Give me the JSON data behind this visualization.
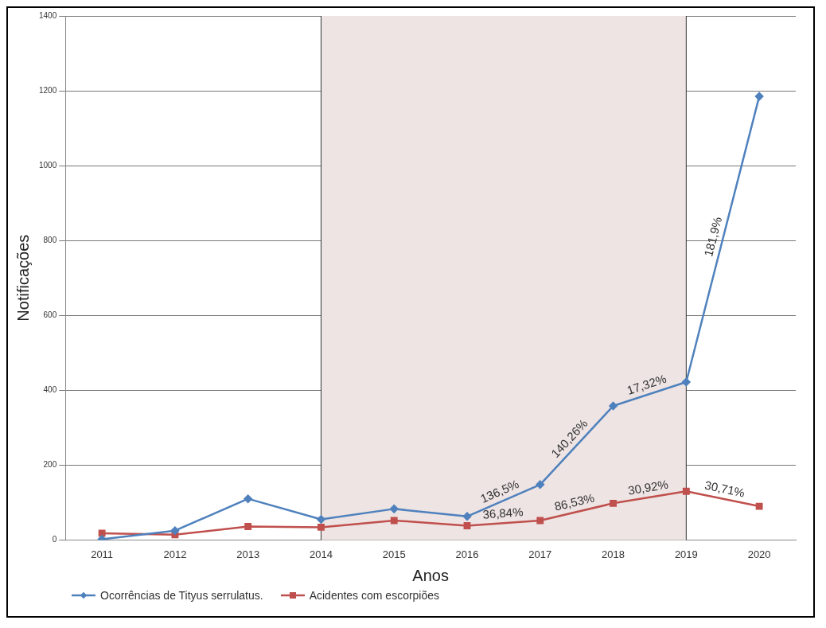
{
  "chart_data": {
    "type": "line",
    "xlabel": "Anos",
    "ylabel": "Notificações",
    "categories": [
      "2011",
      "2012",
      "2013",
      "2014",
      "2015",
      "2016",
      "2017",
      "2018",
      "2019",
      "2020"
    ],
    "series": [
      {
        "name": "Ocorrências de Tityus serrulatus.",
        "color": "#4f81bd",
        "marker": "diamond",
        "values": [
          2,
          25,
          110,
          55,
          83,
          63,
          148,
          358,
          422,
          1185
        ]
      },
      {
        "name": "Acidentes com escorpiões",
        "color": "#c0504d",
        "marker": "square",
        "values": [
          18,
          14,
          36,
          34,
          52,
          38,
          52,
          98,
          130,
          90
        ]
      }
    ],
    "ylim": [
      0,
      1400
    ],
    "yticks": [
      0,
      200,
      400,
      600,
      800,
      1000,
      1200,
      1400
    ],
    "grid": "y",
    "legend": "bottom left",
    "bands": [
      {
        "axis": "x",
        "from": "2014",
        "to": "2019",
        "color": "#ede4e3"
      }
    ],
    "ref_lines": [
      {
        "axis": "x",
        "value": "2014",
        "color": "#333333"
      },
      {
        "axis": "x",
        "value": "2019",
        "color": "#333333"
      }
    ],
    "annotations": [
      {
        "text": "136,5%",
        "x": "2017",
        "y": 148
      },
      {
        "text": "140,26%",
        "x": "2018",
        "y": 358
      },
      {
        "text": "17,32%",
        "x": "2019",
        "y": 422
      },
      "181,9%",
      {
        "text": "36,84%",
        "x": "2017",
        "y": 52
      },
      {
        "text": "86,53%",
        "x": "2018",
        "y": 98
      },
      {
        "text": "30,92%",
        "x": "2019",
        "y": 130
      },
      {
        "text": "30,71%",
        "x": "2020",
        "y": 90
      }
    ]
  }
}
